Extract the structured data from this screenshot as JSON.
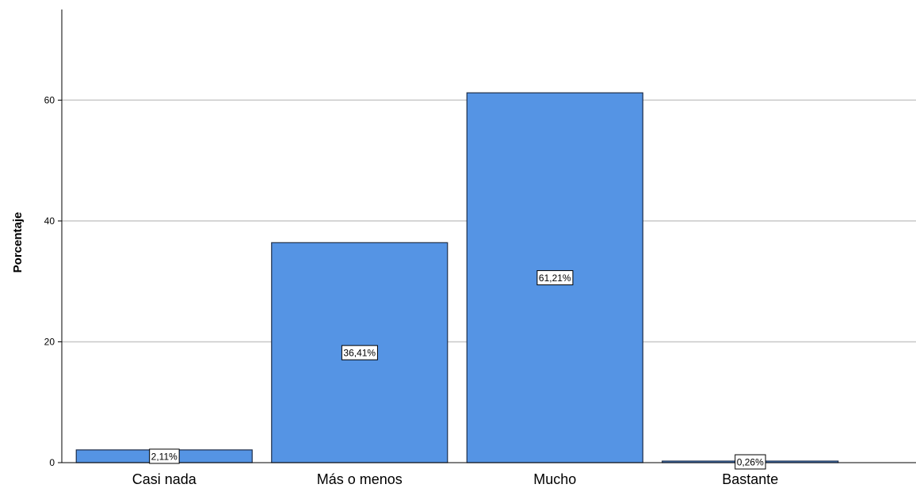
{
  "chart_data": {
    "type": "bar",
    "categories": [
      "Casi nada",
      "Más o menos",
      "Mucho",
      "Bastante"
    ],
    "values": [
      2.11,
      36.41,
      61.21,
      0.26
    ],
    "data_labels": [
      "2,11%",
      "36,41%",
      "61,21%",
      "0,26%"
    ],
    "ylabel": "Porcentaje",
    "xlabel": "",
    "ylim": [
      0,
      75
    ],
    "yticks": [
      0,
      20,
      40,
      60
    ],
    "ytick_labels": [
      "0",
      "20",
      "40",
      "60"
    ],
    "grid": true,
    "colors": {
      "bar_fill": "#5594e4",
      "bar_stroke": "#1f2f4a",
      "grid": "#c8c8c8",
      "axis": "#000000"
    }
  }
}
